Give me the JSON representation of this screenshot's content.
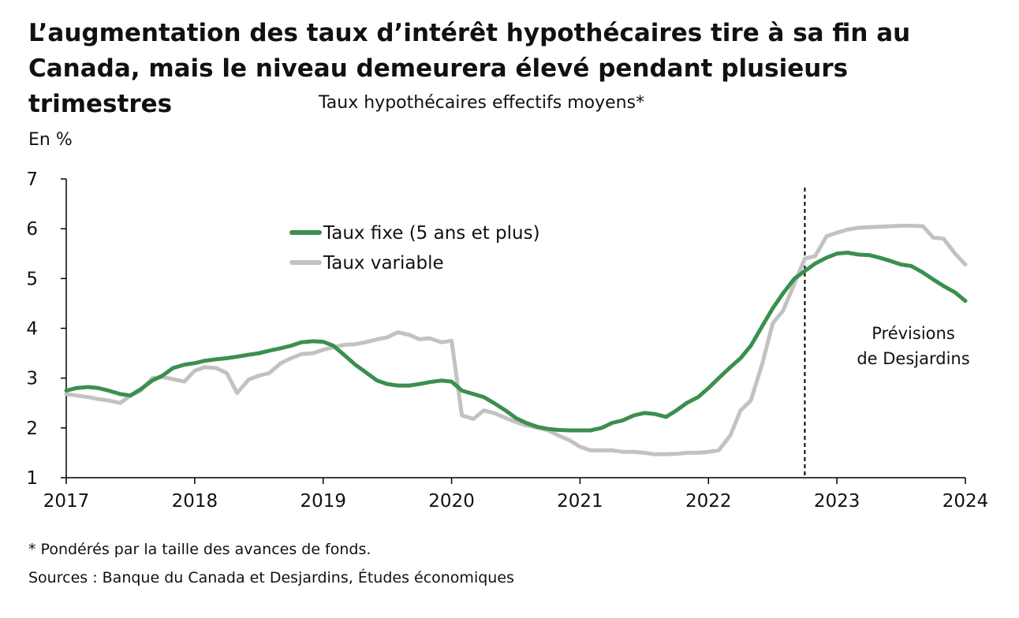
{
  "chart_data": {
    "type": "line",
    "title": "L’augmentation des taux d’intérêt hypothécaires tire à sa fin au Canada, mais le niveau demeurera élevé pendant plusieurs trimestres",
    "subtitle": "Taux hypothécaires effectifs moyens*",
    "ylabel": "En %",
    "xlabel": "",
    "ylim": [
      1,
      7
    ],
    "xlim": [
      2017.0,
      2024.0
    ],
    "yticks": [
      "1",
      "2",
      "3",
      "4",
      "5",
      "6",
      "7"
    ],
    "xticks": [
      "2017",
      "2018",
      "2019",
      "2020",
      "2021",
      "2022",
      "2023",
      "2024"
    ],
    "grid": false,
    "legend_position": "top-left",
    "forecast_start": 2022.75,
    "forecast_label": [
      "Prévisions",
      "de Desjardins"
    ],
    "series": [
      {
        "name": "Taux fixe (5 ans et plus)",
        "color": "#3c8f4e",
        "x": [
          2017.0,
          2017.08,
          2017.17,
          2017.25,
          2017.33,
          2017.42,
          2017.5,
          2017.58,
          2017.67,
          2017.75,
          2017.83,
          2017.92,
          2018.0,
          2018.08,
          2018.17,
          2018.25,
          2018.33,
          2018.42,
          2018.5,
          2018.58,
          2018.67,
          2018.75,
          2018.83,
          2018.92,
          2019.0,
          2019.08,
          2019.17,
          2019.25,
          2019.33,
          2019.42,
          2019.5,
          2019.58,
          2019.67,
          2019.75,
          2019.83,
          2019.92,
          2020.0,
          2020.08,
          2020.17,
          2020.25,
          2020.33,
          2020.42,
          2020.5,
          2020.58,
          2020.67,
          2020.75,
          2020.83,
          2020.92,
          2021.0,
          2021.08,
          2021.17,
          2021.25,
          2021.33,
          2021.42,
          2021.5,
          2021.58,
          2021.67,
          2021.75,
          2021.83,
          2021.92,
          2022.0,
          2022.08,
          2022.17,
          2022.25,
          2022.33,
          2022.42,
          2022.5,
          2022.58,
          2022.67,
          2022.75,
          2022.83,
          2022.92,
          2023.0,
          2023.08,
          2023.17,
          2023.25,
          2023.33,
          2023.42,
          2023.5,
          2023.58,
          2023.67,
          2023.75,
          2023.83,
          2023.92,
          2024.0
        ],
        "y": [
          2.75,
          2.8,
          2.82,
          2.8,
          2.75,
          2.68,
          2.65,
          2.78,
          2.95,
          3.05,
          3.2,
          3.27,
          3.3,
          3.35,
          3.38,
          3.4,
          3.43,
          3.47,
          3.5,
          3.55,
          3.6,
          3.65,
          3.72,
          3.74,
          3.73,
          3.65,
          3.45,
          3.27,
          3.12,
          2.95,
          2.88,
          2.85,
          2.85,
          2.88,
          2.92,
          2.95,
          2.93,
          2.75,
          2.68,
          2.62,
          2.5,
          2.35,
          2.2,
          2.1,
          2.02,
          1.98,
          1.96,
          1.95,
          1.95,
          1.95,
          2.0,
          2.1,
          2.15,
          2.25,
          2.3,
          2.28,
          2.22,
          2.35,
          2.5,
          2.62,
          2.8,
          3.0,
          3.22,
          3.4,
          3.65,
          4.05,
          4.4,
          4.7,
          5.0,
          5.15,
          5.3,
          5.42,
          5.5,
          5.52,
          5.48,
          5.47,
          5.42,
          5.35,
          5.28,
          5.25,
          5.12,
          4.98,
          4.85,
          4.72,
          4.55
        ]
      },
      {
        "name": "Taux variable",
        "color": "#c2c2c2",
        "x": [
          2017.0,
          2017.08,
          2017.17,
          2017.25,
          2017.33,
          2017.42,
          2017.5,
          2017.58,
          2017.67,
          2017.75,
          2017.83,
          2017.92,
          2018.0,
          2018.08,
          2018.17,
          2018.25,
          2018.33,
          2018.42,
          2018.5,
          2018.58,
          2018.67,
          2018.75,
          2018.83,
          2018.92,
          2019.0,
          2019.08,
          2019.17,
          2019.25,
          2019.33,
          2019.42,
          2019.5,
          2019.58,
          2019.67,
          2019.75,
          2019.83,
          2019.92,
          2020.0,
          2020.08,
          2020.17,
          2020.25,
          2020.33,
          2020.42,
          2020.5,
          2020.58,
          2020.67,
          2020.75,
          2020.83,
          2020.92,
          2021.0,
          2021.08,
          2021.17,
          2021.25,
          2021.33,
          2021.42,
          2021.5,
          2021.58,
          2021.67,
          2021.75,
          2021.83,
          2021.92,
          2022.0,
          2022.08,
          2022.17,
          2022.25,
          2022.33,
          2022.42,
          2022.5,
          2022.58,
          2022.67,
          2022.75,
          2022.83,
          2022.92,
          2023.0,
          2023.08,
          2023.17,
          2023.25,
          2023.33,
          2023.42,
          2023.5,
          2023.58,
          2023.67,
          2023.75,
          2023.83,
          2023.92,
          2024.0
        ],
        "y": [
          2.68,
          2.65,
          2.62,
          2.58,
          2.55,
          2.5,
          2.65,
          2.75,
          3.0,
          3.02,
          2.98,
          2.93,
          3.15,
          3.22,
          3.2,
          3.1,
          2.7,
          2.97,
          3.05,
          3.1,
          3.3,
          3.4,
          3.48,
          3.5,
          3.57,
          3.62,
          3.67,
          3.68,
          3.72,
          3.78,
          3.82,
          3.92,
          3.87,
          3.78,
          3.8,
          3.72,
          3.75,
          2.25,
          2.18,
          2.35,
          2.3,
          2.2,
          2.12,
          2.05,
          2.0,
          1.95,
          1.85,
          1.75,
          1.62,
          1.55,
          1.55,
          1.55,
          1.52,
          1.52,
          1.5,
          1.47,
          1.47,
          1.48,
          1.5,
          1.5,
          1.52,
          1.55,
          1.85,
          2.35,
          2.55,
          3.3,
          4.1,
          4.35,
          4.9,
          5.4,
          5.45,
          5.85,
          5.92,
          5.98,
          6.02,
          6.03,
          6.04,
          6.05,
          6.06,
          6.06,
          6.05,
          5.82,
          5.8,
          5.5,
          5.28
        ]
      }
    ]
  },
  "footnotes": {
    "note": "* Pondérés par la taille des avances de fonds.",
    "sources": "Sources : Banque du Canada et Desjardins, Études économiques"
  }
}
